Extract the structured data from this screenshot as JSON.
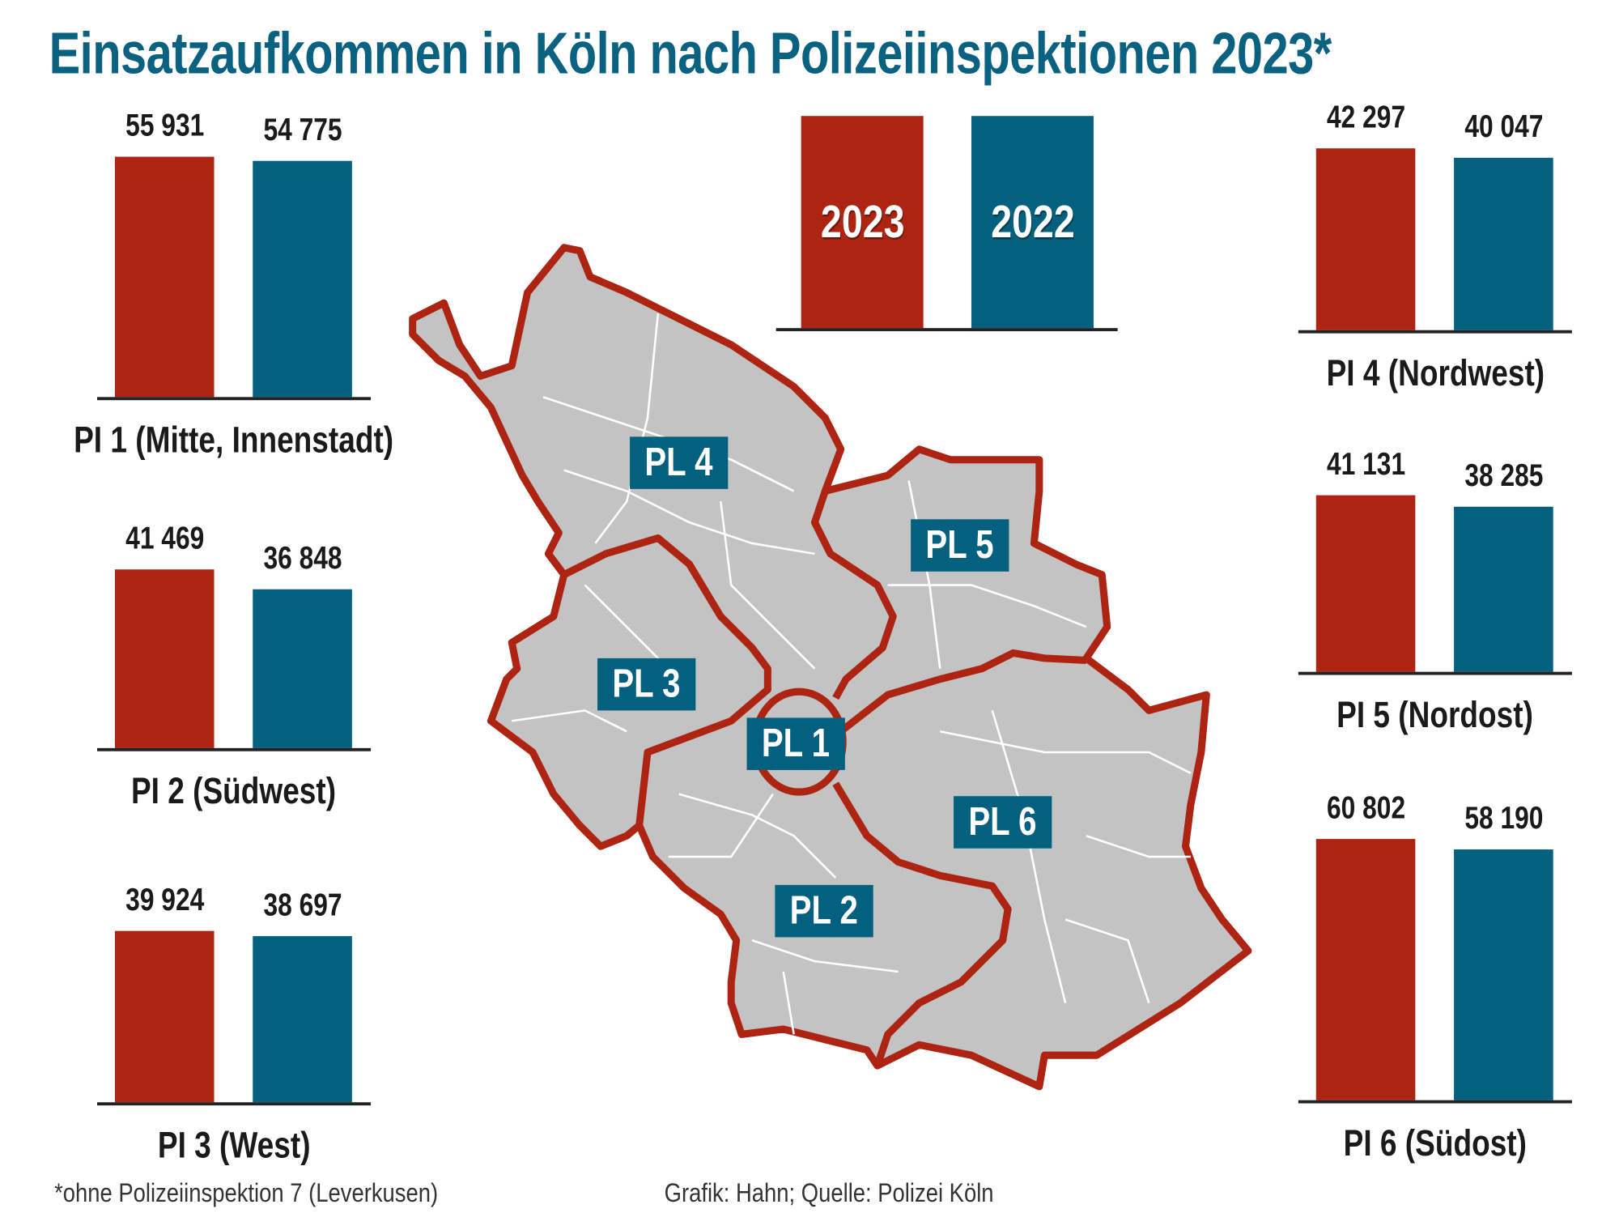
{
  "title": "Einsatzaufkommen in Köln nach Polizeiinspektionen 2023*",
  "colors": {
    "year_2023": "#ad2412",
    "year_2022": "#04607f",
    "title": "#0b6280",
    "map_fill": "#c3c3c3",
    "map_border": "#ad2412"
  },
  "chart_data": {
    "type": "bar",
    "title": "Einsatzaufkommen in Köln nach Polizeiinspektionen 2023*",
    "legend": {
      "position": "top-center",
      "entries": [
        "2023",
        "2022"
      ]
    },
    "series": [
      {
        "name": "2023"
      },
      {
        "name": "2022"
      }
    ],
    "panels": [
      {
        "name": "PI 1 (Mitte, Innenstadt)",
        "values": [
          55931,
          54775
        ],
        "labels": [
          "55 931",
          "54 775"
        ]
      },
      {
        "name": "PI 2 (Südwest)",
        "values": [
          41469,
          36848
        ],
        "labels": [
          "41 469",
          "36 848"
        ]
      },
      {
        "name": "PI 3 (West)",
        "values": [
          39924,
          38697
        ],
        "labels": [
          "39 924",
          "38 697"
        ]
      },
      {
        "name": "PI 4 (Nordwest)",
        "values": [
          42297,
          40047
        ],
        "labels": [
          "42 297",
          "40 047"
        ]
      },
      {
        "name": "PI 5 (Nordost)",
        "values": [
          41131,
          38285
        ],
        "labels": [
          "41 131",
          "38 285"
        ]
      },
      {
        "name": "PI 6 (Südost)",
        "values": [
          60802,
          58190
        ],
        "labels": [
          "60 802",
          "58 190"
        ]
      }
    ]
  },
  "map_labels": [
    "PL 1",
    "PL 2",
    "PL 3",
    "PL 4",
    "PL 5",
    "PL 6"
  ],
  "footnote": "*ohne Polizeiinspektion 7 (Leverkusen)",
  "source": "Grafik: Hahn; Quelle: Polizei Köln"
}
